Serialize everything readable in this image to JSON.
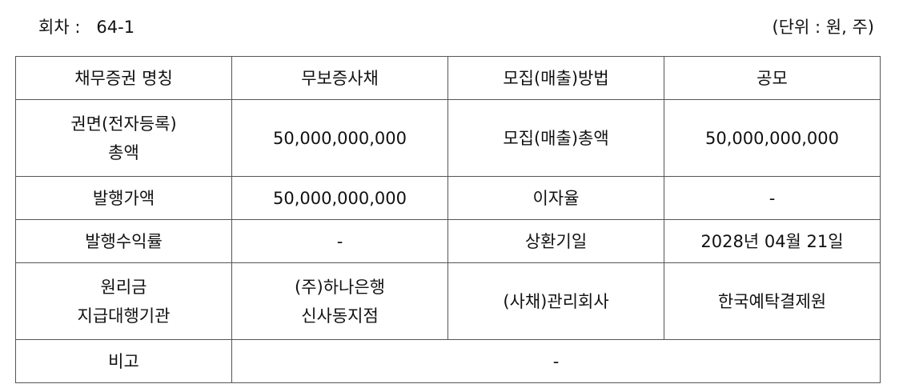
{
  "header": {
    "round_label": "회차 :",
    "round_value": "64-1",
    "unit": "(단위 : 원, 주)"
  },
  "rows": [
    [
      "채무증권 명칭",
      "무보증사채",
      "모집(매출)방법",
      "공모"
    ],
    [
      "권면(전자등록)\n총액",
      "50,000,000,000",
      "모집(매출)총액",
      "50,000,000,000"
    ],
    [
      "발행가액",
      "50,000,000,000",
      "이자율",
      "-"
    ],
    [
      "발행수익률",
      "-",
      "상환기일",
      "2028년 04월 21일"
    ],
    [
      "원리금\n지급대행기관",
      "(주)하나은행\n신사동지점",
      "(사채)관리회사",
      "한국예탁결제원"
    ],
    [
      "비고",
      "-"
    ]
  ]
}
